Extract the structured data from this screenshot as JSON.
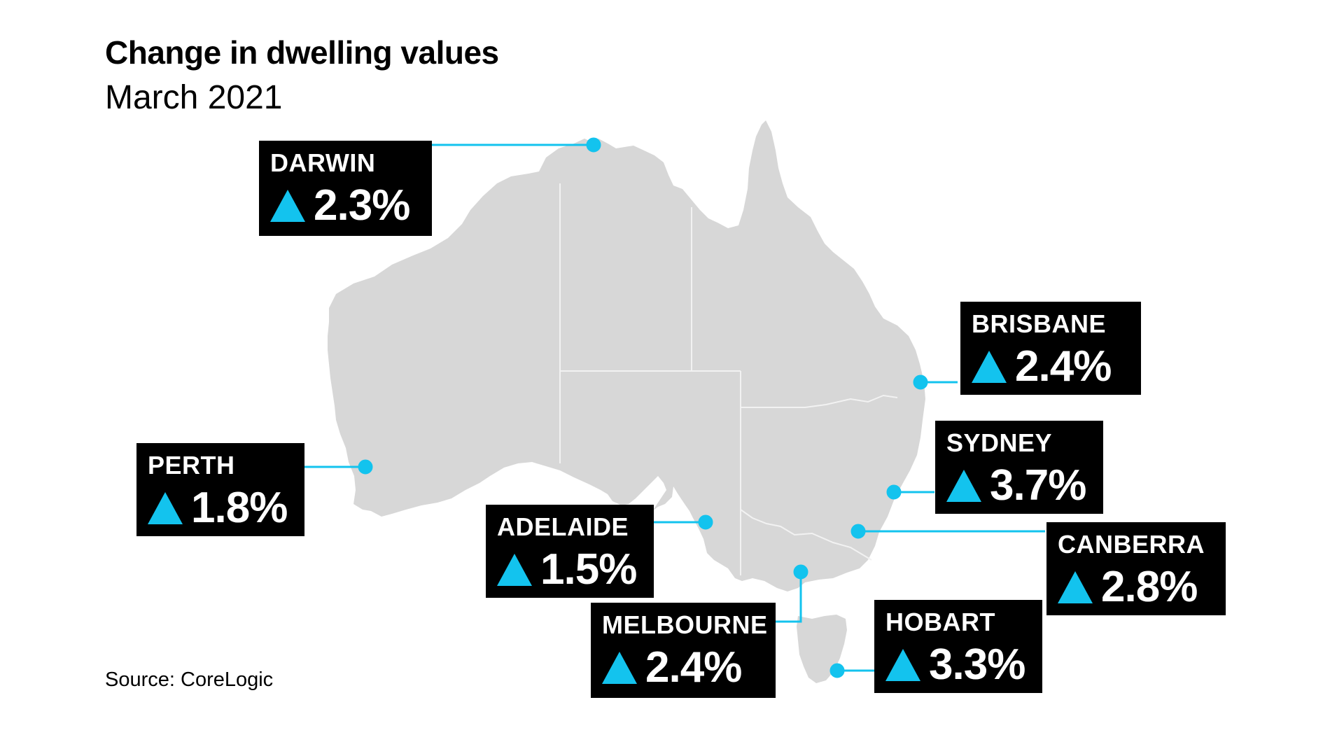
{
  "header": {
    "title": "Change in dwelling values",
    "subtitle": "March 2021"
  },
  "source": "Source: CoreLogic",
  "colors": {
    "land": "#d7d7d7",
    "borders": "#f2f2f2",
    "box": "#000000",
    "accent": "#13c3ee"
  },
  "icon": "up-triangle-icon",
  "cities": [
    {
      "name": "DARWIN",
      "change": "2.3%",
      "change_pct": 2.3
    },
    {
      "name": "BRISBANE",
      "change": "2.4%",
      "change_pct": 2.4
    },
    {
      "name": "SYDNEY",
      "change": "3.7%",
      "change_pct": 3.7
    },
    {
      "name": "CANBERRA",
      "change": "2.8%",
      "change_pct": 2.8
    },
    {
      "name": "PERTH",
      "change": "1.8%",
      "change_pct": 1.8
    },
    {
      "name": "ADELAIDE",
      "change": "1.5%",
      "change_pct": 1.5
    },
    {
      "name": "MELBOURNE",
      "change": "2.4%",
      "change_pct": 2.4
    },
    {
      "name": "HOBART",
      "change": "3.3%",
      "change_pct": 3.3
    }
  ]
}
